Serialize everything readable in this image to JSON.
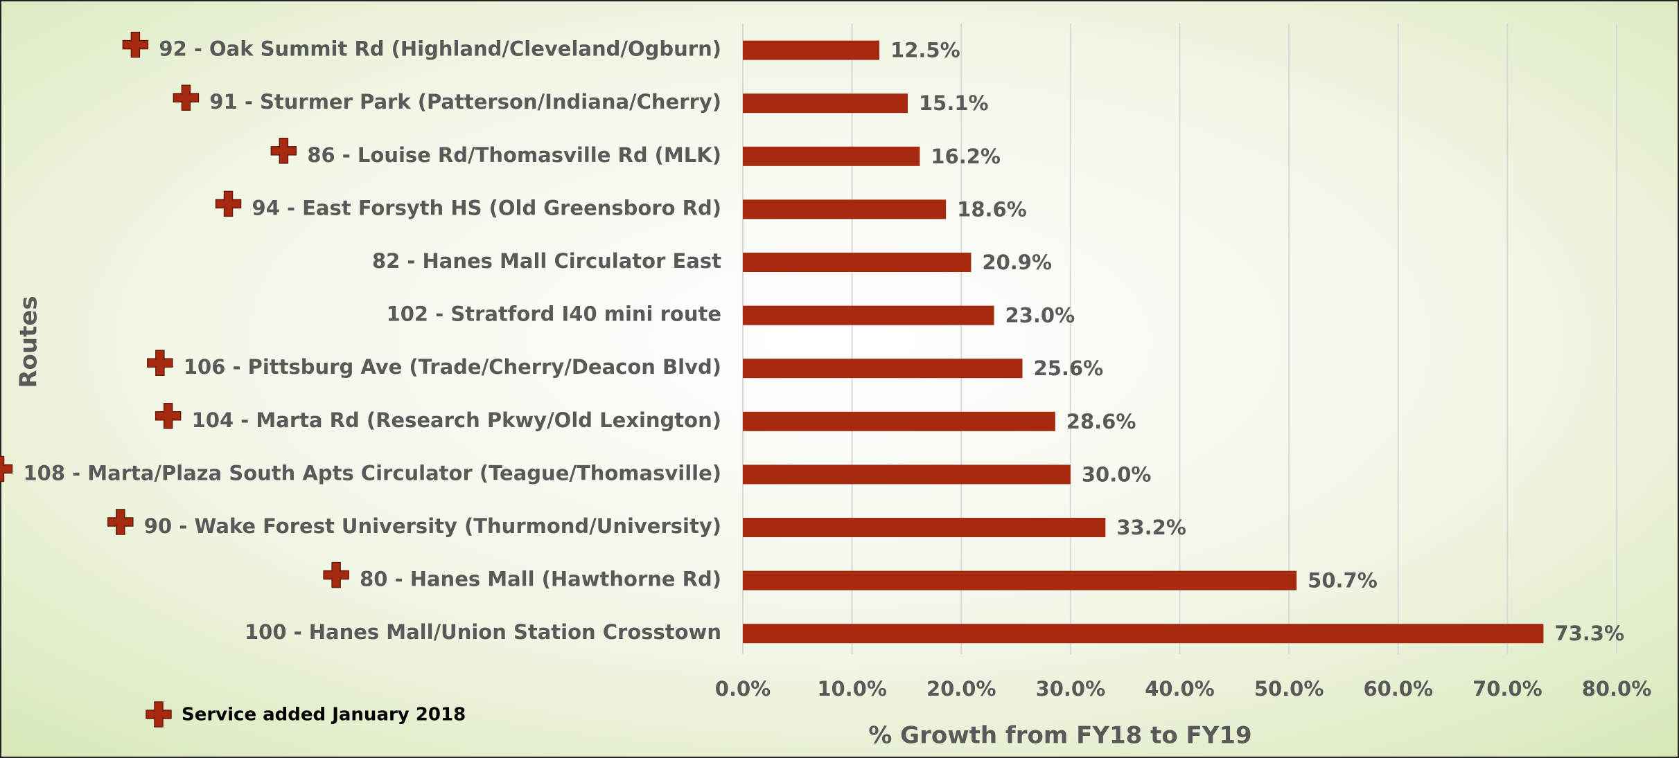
{
  "chart_data": {
    "type": "bar",
    "orientation": "horizontal",
    "y_axis_title": "Routes",
    "x_axis_title": "% Growth from FY18 to FY19",
    "legend_label": "Service added January 2018",
    "categories": [
      "92 - Oak Summit Rd (Highland/Cleveland/Ogburn)",
      "91 - Sturmer Park (Patterson/Indiana/Cherry)",
      "86 - Louise Rd/Thomasville Rd (MLK)",
      "94 - East Forsyth HS (Old Greensboro Rd)",
      "82 - Hanes Mall Circulator East",
      "102 - Stratford I40 mini route",
      "106 - Pittsburg Ave (Trade/Cherry/Deacon Blvd)",
      "104 - Marta Rd (Research Pkwy/Old Lexington)",
      "108 - Marta/Plaza South Apts Circulator (Teague/Thomasville)",
      "90 - Wake Forest University (Thurmond/University)",
      "80 - Hanes Mall (Hawthorne Rd)",
      "100 - Hanes Mall/Union Station Crosstown"
    ],
    "values": [
      12.5,
      15.1,
      16.2,
      18.6,
      20.9,
      23.0,
      25.6,
      28.6,
      30.0,
      33.2,
      50.7,
      73.3
    ],
    "value_labels": [
      "12.5%",
      "15.1%",
      "16.2%",
      "18.6%",
      "20.9%",
      "23.0%",
      "25.6%",
      "28.6%",
      "30.0%",
      "33.2%",
      "50.7%",
      "73.3%"
    ],
    "service_added": [
      true,
      true,
      true,
      true,
      false,
      false,
      true,
      true,
      true,
      true,
      true,
      false
    ],
    "color": "#a52a10",
    "xlim": [
      0,
      80
    ],
    "xticks": [
      {
        "value": 0,
        "label": "0.0%"
      },
      {
        "value": 10,
        "label": "10.0%"
      },
      {
        "value": 20,
        "label": "20.0%"
      },
      {
        "value": 30,
        "label": "30.0%"
      },
      {
        "value": 40,
        "label": "40.0%"
      },
      {
        "value": 50,
        "label": "50.0%"
      },
      {
        "value": 60,
        "label": "60.0%"
      },
      {
        "value": 70,
        "label": "70.0%"
      },
      {
        "value": 80,
        "label": "80.0%"
      }
    ],
    "grid": true
  }
}
